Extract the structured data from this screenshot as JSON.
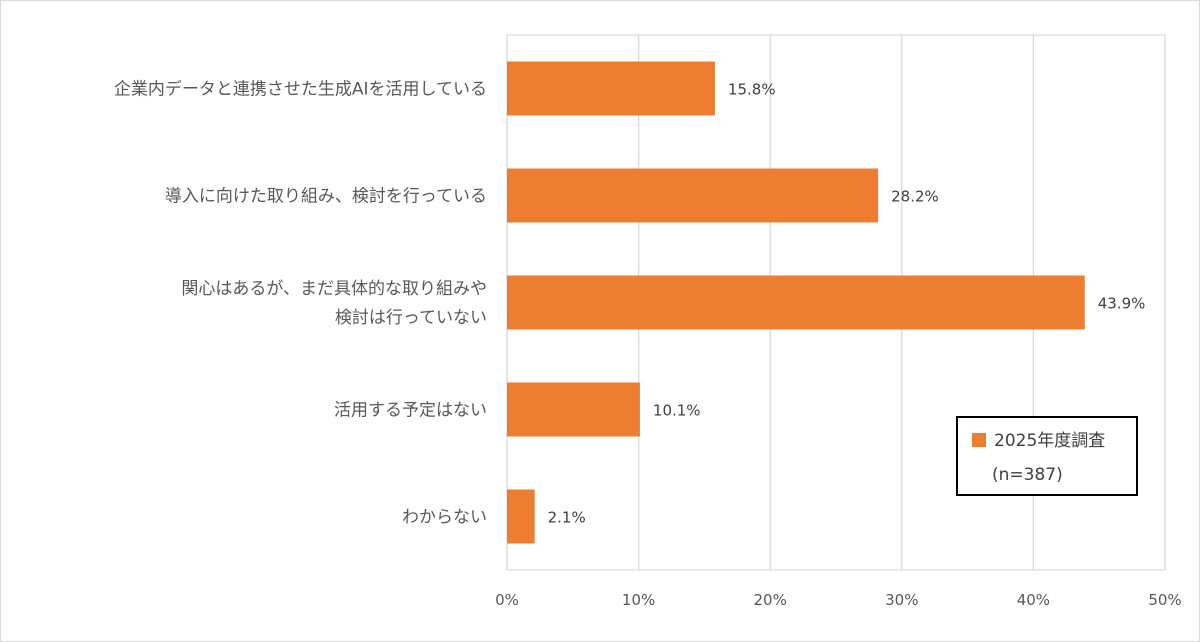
{
  "chart_data": {
    "type": "bar",
    "orientation": "horizontal",
    "categories": [
      [
        "企業内データと連携させた生成AIを活用している"
      ],
      [
        "導入に向けた取り組み、検討を行っている"
      ],
      [
        "関心はあるが、まだ具体的な取り組みや",
        "検討は行っていない"
      ],
      [
        "活用する予定はない"
      ],
      [
        "わからない"
      ]
    ],
    "series": [
      {
        "name": "2025年度調査",
        "name_sub": "(n=387)",
        "values": [
          15.8,
          28.2,
          43.9,
          10.1,
          2.1
        ],
        "value_labels": [
          "15.8%",
          "28.2%",
          "43.9%",
          "10.1%",
          "2.1%"
        ],
        "color": "#ED7D31"
      }
    ],
    "xlim": [
      0,
      50
    ],
    "xticks": [
      0,
      10,
      20,
      30,
      40,
      50
    ],
    "xtick_labels": [
      "0%",
      "10%",
      "20%",
      "30%",
      "40%",
      "50%"
    ],
    "grid": true,
    "legend_position": "bottom-right",
    "colors": {
      "grid": "#d9d9d9",
      "text": "#595959"
    }
  }
}
